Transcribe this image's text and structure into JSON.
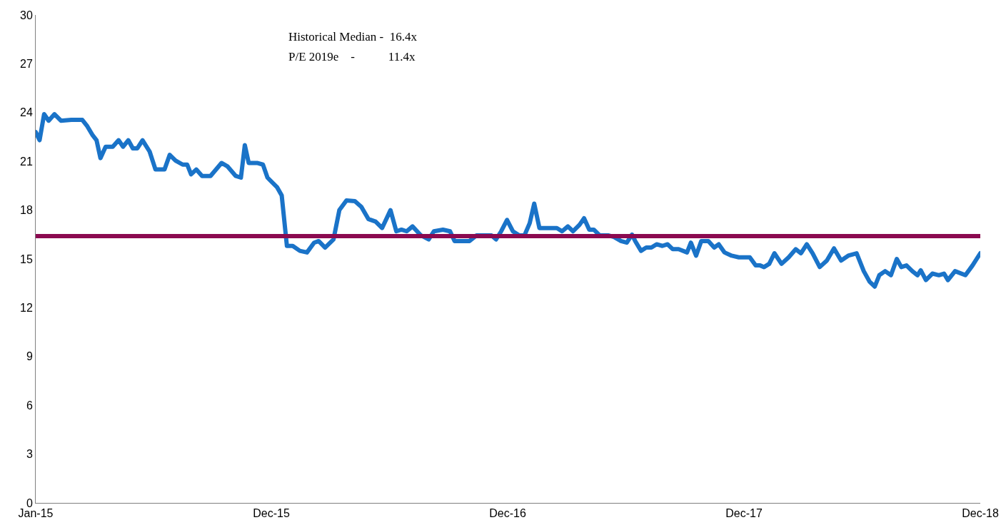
{
  "chart_data": {
    "type": "line",
    "annotations": [
      "Historical Median -  16.4x",
      "P/E 2019e    -           11.4x"
    ],
    "x": [
      "2015-01-01",
      "2015-01-07",
      "2015-01-14",
      "2015-01-21",
      "2015-01-30",
      "2015-02-09",
      "2015-02-25",
      "2015-03-14",
      "2015-03-21",
      "2015-03-30",
      "2015-04-05",
      "2015-04-11",
      "2015-04-19",
      "2015-04-30",
      "2015-05-09",
      "2015-05-16",
      "2015-05-24",
      "2015-05-31",
      "2015-06-07",
      "2015-06-15",
      "2015-06-26",
      "2015-07-05",
      "2015-07-19",
      "2015-07-27",
      "2015-08-05",
      "2015-08-16",
      "2015-08-23",
      "2015-08-29",
      "2015-09-06",
      "2015-09-15",
      "2015-09-28",
      "2015-10-15",
      "2015-10-24",
      "2015-11-06",
      "2015-11-14",
      "2015-11-20",
      "2015-11-26",
      "2015-12-09",
      "2015-12-18",
      "2015-12-25",
      "2016-01-09",
      "2016-01-16",
      "2016-01-24",
      "2016-02-02",
      "2016-02-13",
      "2016-02-24",
      "2016-03-06",
      "2016-03-13",
      "2016-03-23",
      "2016-04-05",
      "2016-04-14",
      "2016-04-25",
      "2016-05-08",
      "2016-05-18",
      "2016-05-29",
      "2016-06-09",
      "2016-06-19",
      "2016-07-02",
      "2016-07-11",
      "2016-07-19",
      "2016-07-27",
      "2016-08-05",
      "2016-08-18",
      "2016-08-30",
      "2016-09-07",
      "2016-09-21",
      "2016-10-02",
      "2016-10-09",
      "2016-10-24",
      "2016-11-01",
      "2016-11-12",
      "2016-11-24",
      "2016-12-05",
      "2016-12-12",
      "2016-12-20",
      "2016-12-29",
      "2017-01-07",
      "2017-01-17",
      "2017-01-25",
      "2017-02-02",
      "2017-02-09",
      "2017-02-17",
      "2017-03-05",
      "2017-03-16",
      "2017-03-24",
      "2017-04-02",
      "2017-04-10",
      "2017-04-20",
      "2017-04-27",
      "2017-05-05",
      "2017-05-12",
      "2017-05-21",
      "2017-06-03",
      "2017-06-12",
      "2017-06-23",
      "2017-07-02",
      "2017-07-10",
      "2017-07-15",
      "2017-07-24",
      "2017-08-01",
      "2017-08-09",
      "2017-08-17",
      "2017-08-26",
      "2017-09-03",
      "2017-09-11",
      "2017-09-20",
      "2017-10-03",
      "2017-10-09",
      "2017-10-17",
      "2017-10-25",
      "2017-11-05",
      "2017-11-14",
      "2017-11-21",
      "2017-11-30",
      "2017-12-11",
      "2017-12-22",
      "2018-01-08",
      "2018-01-17",
      "2018-01-24",
      "2018-01-30",
      "2018-02-07",
      "2018-02-15",
      "2018-02-26",
      "2018-03-09",
      "2018-03-20",
      "2018-03-28",
      "2018-04-06",
      "2018-04-15",
      "2018-04-26",
      "2018-05-07",
      "2018-05-18",
      "2018-05-29",
      "2018-06-09",
      "2018-06-22",
      "2018-07-03",
      "2018-07-12",
      "2018-07-20",
      "2018-07-27",
      "2018-08-05",
      "2018-08-14",
      "2018-08-23",
      "2018-08-30",
      "2018-09-07",
      "2018-09-16",
      "2018-09-24",
      "2018-09-29",
      "2018-10-07",
      "2018-10-17",
      "2018-10-27",
      "2018-11-04",
      "2018-11-10",
      "2018-11-21",
      "2018-12-07",
      "2018-12-18",
      "2018-12-30"
    ],
    "series": [
      {
        "color": "#1a73c8",
        "values": [
          22.8,
          22.3,
          23.9,
          23.5,
          23.9,
          23.5,
          23.55,
          23.55,
          23.2,
          22.6,
          22.3,
          21.2,
          21.9,
          21.9,
          22.3,
          21.9,
          22.3,
          21.8,
          21.8,
          22.3,
          21.6,
          20.5,
          20.5,
          21.4,
          21.05,
          20.8,
          20.8,
          20.2,
          20.5,
          20.1,
          20.1,
          20.9,
          20.7,
          20.1,
          20.0,
          22.0,
          20.9,
          20.9,
          20.8,
          20.0,
          19.4,
          18.9,
          15.8,
          15.8,
          15.5,
          15.4,
          16.0,
          16.1,
          15.7,
          16.2,
          18.0,
          18.6,
          18.55,
          18.2,
          17.45,
          17.3,
          16.9,
          18.0,
          16.7,
          16.8,
          16.7,
          17.0,
          16.45,
          16.2,
          16.7,
          16.8,
          16.7,
          16.1,
          16.1,
          16.1,
          16.45,
          16.45,
          16.45,
          16.2,
          16.7,
          17.4,
          16.7,
          16.45,
          16.45,
          17.2,
          18.4,
          16.9,
          16.9,
          16.9,
          16.7,
          17.0,
          16.7,
          17.1,
          17.5,
          16.8,
          16.8,
          16.45,
          16.45,
          16.35,
          16.1,
          16.0,
          16.5,
          16.1,
          15.5,
          15.7,
          15.7,
          15.9,
          15.8,
          15.9,
          15.6,
          15.6,
          15.4,
          16.0,
          15.2,
          16.1,
          16.1,
          15.7,
          15.9,
          15.4,
          15.2,
          15.1,
          15.1,
          14.6,
          14.6,
          14.5,
          14.7,
          15.35,
          14.7,
          15.1,
          15.6,
          15.35,
          15.9,
          15.35,
          14.5,
          14.9,
          15.65,
          14.9,
          15.2,
          15.35,
          14.25,
          13.6,
          13.3,
          14.0,
          14.25,
          14.0,
          15.0,
          14.5,
          14.6,
          14.25,
          14.0,
          14.3,
          13.7,
          14.1,
          14.0,
          14.1,
          13.7,
          14.25,
          14.0,
          14.6,
          15.35
        ]
      }
    ],
    "ref_lines": [
      {
        "axis": "y",
        "value": 16.4,
        "color": "#8b0a50"
      }
    ],
    "xlim": [
      "2015-01-01",
      "2018-12-30"
    ],
    "xticks": [
      {
        "value": "2015-01-01",
        "label": "Jan-15"
      },
      {
        "value": "2015-12-31",
        "label": "Dec-15"
      },
      {
        "value": "2016-12-30",
        "label": "Dec-16"
      },
      {
        "value": "2017-12-30",
        "label": "Dec-17"
      },
      {
        "value": "2018-12-30",
        "label": "Dec-18"
      }
    ],
    "ylim": [
      0,
      30
    ],
    "yticks": [
      0,
      3,
      6,
      9,
      12,
      15,
      18,
      21,
      24,
      27,
      30
    ],
    "marker": "none",
    "line_style": "solid"
  }
}
